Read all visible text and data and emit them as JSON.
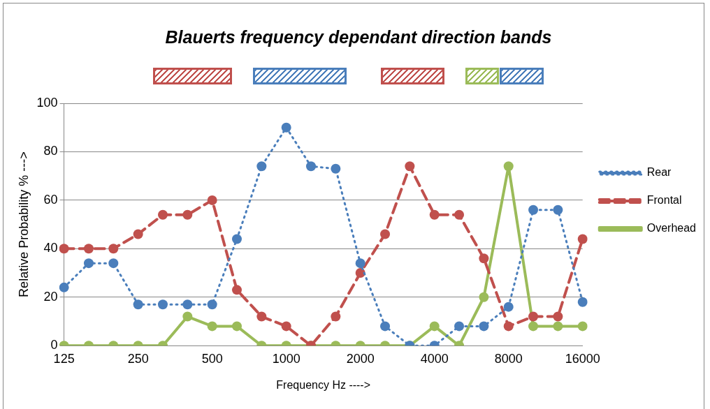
{
  "chart_data": {
    "type": "line",
    "title": "Blauerts frequency dependant direction bands",
    "xlabel": "Frequency Hz ---->",
    "ylabel": "Relative Probability % --->",
    "categories": [
      "125",
      null,
      null,
      "250",
      null,
      null,
      "500",
      null,
      null,
      "1000",
      null,
      null,
      "2000",
      null,
      null,
      "4000",
      null,
      null,
      "8000",
      null,
      null,
      "16000"
    ],
    "series": [
      {
        "name": "Rear",
        "color": "#4a7ebb",
        "line_style": "dotted",
        "values": [
          24,
          34,
          34,
          17,
          17,
          17,
          17,
          44,
          74,
          90,
          74,
          73,
          34,
          8,
          0,
          0,
          8,
          8,
          16,
          56,
          56,
          18
        ]
      },
      {
        "name": "Frontal",
        "color": "#c0504d",
        "line_style": "dashed",
        "values": [
          40,
          40,
          40,
          46,
          54,
          54,
          60,
          23,
          12,
          8,
          0,
          12,
          30,
          46,
          74,
          54,
          54,
          36,
          8,
          12,
          12,
          44
        ]
      },
      {
        "name": "Overhead",
        "color": "#9bbb59",
        "line_style": "solid",
        "values": [
          0,
          0,
          0,
          0,
          0,
          12,
          8,
          8,
          0,
          0,
          0,
          0,
          0,
          0,
          0,
          8,
          0,
          20,
          74,
          8,
          8,
          8
        ]
      }
    ],
    "ylim": [
      0,
      100
    ],
    "yticks": [
      0,
      20,
      40,
      60,
      80,
      100
    ],
    "grid": "y",
    "legend": "right",
    "marker": "circle"
  }
}
